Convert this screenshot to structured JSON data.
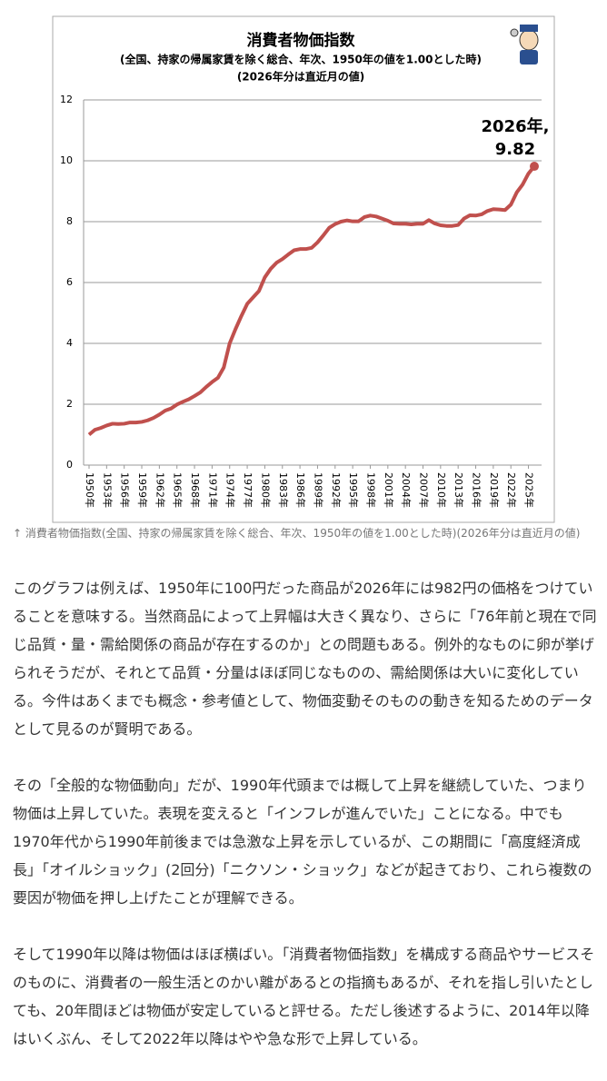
{
  "chart_data": {
    "type": "line",
    "title": "消費者物価指数",
    "subtitle": "(全国、持家の帰属家賃を除く総合、年次、1950年の値を1.00とした時)",
    "note": "(2026年分は直近月の値)",
    "annotation": [
      "2026年,",
      "9.82"
    ],
    "color": "#c0504d",
    "x": [
      1950,
      1951,
      1952,
      1953,
      1954,
      1955,
      1956,
      1957,
      1958,
      1959,
      1960,
      1961,
      1962,
      1963,
      1964,
      1965,
      1966,
      1967,
      1968,
      1969,
      1970,
      1971,
      1972,
      1973,
      1974,
      1975,
      1976,
      1977,
      1978,
      1979,
      1980,
      1981,
      1982,
      1983,
      1984,
      1985,
      1986,
      1987,
      1988,
      1989,
      1990,
      1991,
      1992,
      1993,
      1994,
      1995,
      1996,
      1997,
      1998,
      1999,
      2000,
      2001,
      2002,
      2003,
      2004,
      2005,
      2006,
      2007,
      2008,
      2009,
      2010,
      2011,
      2012,
      2013,
      2014,
      2015,
      2016,
      2017,
      2018,
      2019,
      2020,
      2021,
      2022,
      2023,
      2024,
      2025,
      2026
    ],
    "values": [
      1.0,
      1.16,
      1.22,
      1.3,
      1.36,
      1.35,
      1.36,
      1.4,
      1.4,
      1.42,
      1.47,
      1.55,
      1.66,
      1.79,
      1.86,
      1.99,
      2.08,
      2.16,
      2.27,
      2.39,
      2.57,
      2.73,
      2.87,
      3.21,
      4.0,
      4.47,
      4.9,
      5.3,
      5.51,
      5.72,
      6.17,
      6.45,
      6.65,
      6.77,
      6.92,
      7.06,
      7.1,
      7.1,
      7.14,
      7.32,
      7.55,
      7.8,
      7.92,
      8.0,
      8.04,
      8.01,
      8.01,
      8.15,
      8.2,
      8.17,
      8.1,
      8.03,
      7.94,
      7.93,
      7.93,
      7.91,
      7.93,
      7.93,
      8.05,
      7.94,
      7.88,
      7.86,
      7.86,
      7.89,
      8.1,
      8.21,
      8.2,
      8.24,
      8.35,
      8.41,
      8.4,
      8.38,
      8.56,
      8.96,
      9.22,
      9.58,
      9.82
    ],
    "xlim": [
      1950,
      2026
    ],
    "xticks": [
      {
        "value": 1950,
        "label": "1950年"
      },
      {
        "value": 1953,
        "label": "1953年"
      },
      {
        "value": 1956,
        "label": "1956年"
      },
      {
        "value": 1959,
        "label": "1959年"
      },
      {
        "value": 1962,
        "label": "1962年"
      },
      {
        "value": 1965,
        "label": "1965年"
      },
      {
        "value": 1968,
        "label": "1968年"
      },
      {
        "value": 1971,
        "label": "1971年"
      },
      {
        "value": 1974,
        "label": "1974年"
      },
      {
        "value": 1977,
        "label": "1977年"
      },
      {
        "value": 1980,
        "label": "1980年"
      },
      {
        "value": 1983,
        "label": "1983年"
      },
      {
        "value": 1986,
        "label": "1986年"
      },
      {
        "value": 1989,
        "label": "1989年"
      },
      {
        "value": 1992,
        "label": "1992年"
      },
      {
        "value": 1995,
        "label": "1995年"
      },
      {
        "value": 1998,
        "label": "1998年"
      },
      {
        "value": 2001,
        "label": "2001年"
      },
      {
        "value": 2004,
        "label": "2004年"
      },
      {
        "value": 2007,
        "label": "2007年"
      },
      {
        "value": 2010,
        "label": "2010年"
      },
      {
        "value": 2013,
        "label": "2013年"
      },
      {
        "value": 2016,
        "label": "2016年"
      },
      {
        "value": 2019,
        "label": "2019年"
      },
      {
        "value": 2022,
        "label": "2022年"
      },
      {
        "value": 2025,
        "label": "2025年"
      }
    ],
    "ylim": [
      0,
      12
    ],
    "yticks": [
      0,
      2,
      4,
      6,
      8,
      10,
      12
    ],
    "grid": true
  },
  "caption": "↑ 消費者物価指数(全国、持家の帰属家賃を除く総合、年次、1950年の値を1.00とした時)(2026年分は直近月の値)",
  "paragraphs": [
    "このグラフは例えば、1950年に100円だった商品が2026年には982円の価格をつけていることを意味する。当然商品によって上昇幅は大きく異なり、さらに「76年前と現在で同じ品質・量・需給関係の商品が存在するのか」との問題もある。例外的なものに卵が挙げられそうだが、それとて品質・分量はほぼ同じなものの、需給関係は大いに変化している。今件はあくまでも概念・参考値として、物価変動そのものの動きを知るためのデータとして見るのが賢明である。",
    "その「全般的な物価動向」だが、1990年代頭までは概して上昇を継続していた、つまり物価は上昇していた。表現を変えると「インフレが進んでいた」ことになる。中でも1970年代から1990年前後までは急激な上昇を示しているが、この期間に「高度経済成長」「オイルショック」(2回分)「ニクソン・ショック」などが起きており、これら複数の要因が物価を押し上げたことが理解できる。",
    "そして1990年以降は物価はほぼ横ばい。「消費者物価指数」を構成する商品やサービスそのものに、消費者の一般生活とのかい離があるとの指摘もあるが、それを指し引いたとしても、20年間ほどは物価が安定していると評せる。ただし後述するように、2014年以降はいくぶん、そして2022年以降はやや急な形で上昇している。"
  ]
}
